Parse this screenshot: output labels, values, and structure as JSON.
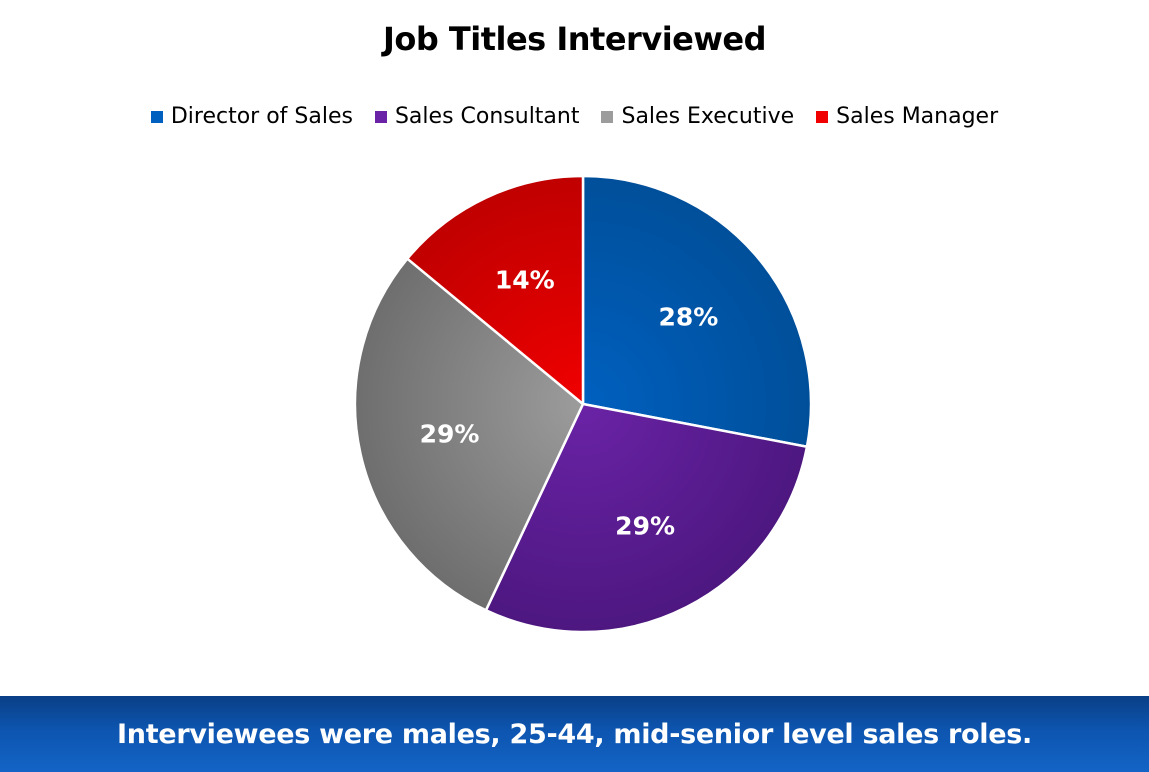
{
  "chart_data": {
    "type": "pie",
    "title": "Job Titles Interviewed",
    "legend_position": "top",
    "slices": [
      {
        "name": "Director of Sales",
        "value": 28,
        "label": "28%",
        "color": "#0060bf",
        "color_dark": "#004f9a"
      },
      {
        "name": "Sales Consultant",
        "value": 29,
        "label": "29%",
        "color": "#6a23a6",
        "color_dark": "#4d1780"
      },
      {
        "name": "Sales Executive",
        "value": 29,
        "label": "29%",
        "color": "#9c9c9c",
        "color_dark": "#6e6e6e"
      },
      {
        "name": "Sales Manager",
        "value": 14,
        "label": "14%",
        "color": "#f00000",
        "color_dark": "#c00000"
      }
    ]
  },
  "footer": {
    "text": "Interviewees were males, 25-44, mid-senior level sales roles."
  }
}
